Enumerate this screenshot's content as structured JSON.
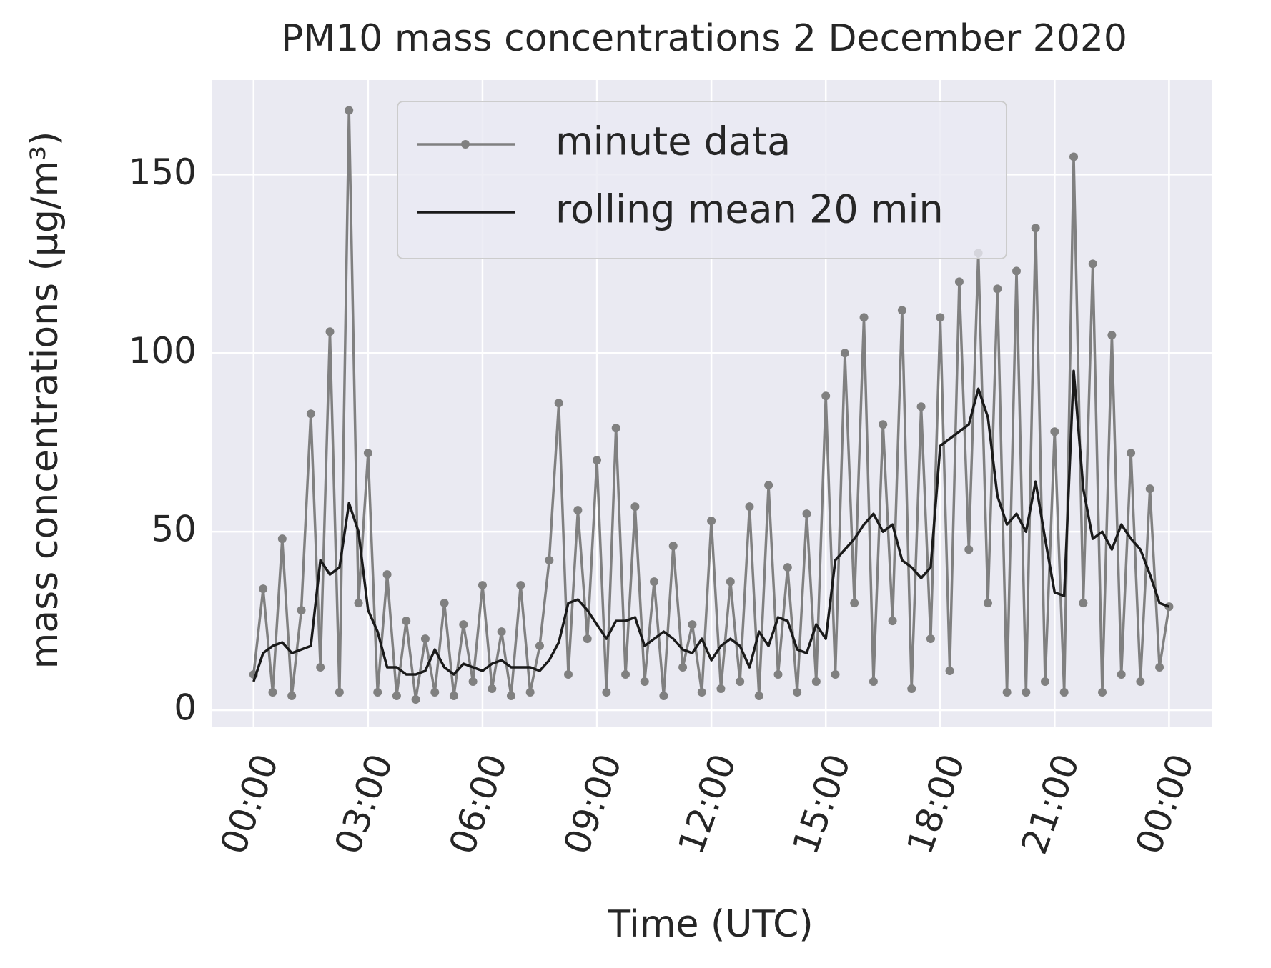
{
  "chart_data": {
    "type": "line",
    "title": "PM10 mass concentrations 2 December 2020",
    "xlabel": "Time (UTC)",
    "ylabel": "mass concentrations (μg/m³)",
    "x": [
      0,
      15,
      30,
      45,
      60,
      75,
      90,
      105,
      120,
      135,
      150,
      165,
      180,
      195,
      210,
      225,
      240,
      255,
      270,
      285,
      300,
      315,
      330,
      345,
      360,
      375,
      390,
      405,
      420,
      435,
      450,
      465,
      480,
      495,
      510,
      525,
      540,
      555,
      570,
      585,
      600,
      615,
      630,
      645,
      660,
      675,
      690,
      705,
      720,
      735,
      750,
      765,
      780,
      795,
      810,
      825,
      840,
      855,
      870,
      885,
      900,
      915,
      930,
      945,
      960,
      975,
      990,
      1005,
      1020,
      1035,
      1050,
      1065,
      1080,
      1095,
      1110,
      1125,
      1140,
      1155,
      1170,
      1185,
      1200,
      1215,
      1230,
      1245,
      1260,
      1275,
      1290,
      1305,
      1320,
      1335,
      1350,
      1365,
      1380,
      1395,
      1410,
      1425,
      1440
    ],
    "series": [
      {
        "name": "minute data",
        "color": "#808080",
        "marker": true,
        "values": [
          10,
          34,
          5,
          48,
          4,
          28,
          83,
          12,
          106,
          5,
          168,
          30,
          72,
          5,
          38,
          4,
          25,
          3,
          20,
          5,
          30,
          4,
          24,
          8,
          35,
          6,
          22,
          4,
          35,
          5,
          18,
          42,
          86,
          10,
          56,
          20,
          70,
          5,
          79,
          10,
          57,
          8,
          36,
          4,
          46,
          12,
          24,
          5,
          53,
          6,
          36,
          8,
          57,
          4,
          63,
          10,
          40,
          5,
          55,
          8,
          88,
          10,
          100,
          30,
          110,
          8,
          80,
          25,
          112,
          6,
          85,
          20,
          110,
          11,
          120,
          45,
          128,
          30,
          118,
          5,
          123,
          5,
          135,
          8,
          78,
          5,
          155,
          30,
          125,
          5,
          105,
          10,
          72,
          8,
          62,
          12,
          29
        ]
      },
      {
        "name": "rolling mean 20 min",
        "color": "#1a1a1a",
        "marker": false,
        "values": [
          8,
          16,
          18,
          19,
          16,
          17,
          18,
          42,
          38,
          40,
          58,
          50,
          28,
          22,
          12,
          12,
          10,
          10,
          11,
          17,
          12,
          10,
          13,
          12,
          11,
          13,
          14,
          12,
          12,
          12,
          11,
          14,
          19,
          30,
          31,
          28,
          24,
          20,
          25,
          25,
          26,
          18,
          20,
          22,
          20,
          17,
          16,
          20,
          14,
          18,
          20,
          18,
          12,
          22,
          18,
          26,
          25,
          17,
          16,
          24,
          20,
          42,
          45,
          48,
          52,
          55,
          50,
          52,
          42,
          40,
          37,
          40,
          74,
          76,
          78,
          80,
          90,
          82,
          60,
          52,
          55,
          50,
          64,
          48,
          33,
          32,
          95,
          62,
          48,
          50,
          45,
          52,
          48,
          45,
          38,
          30,
          29
        ]
      }
    ],
    "xlim": [
      -65,
      1507
    ],
    "xticks": [
      {
        "value": 0,
        "label": "00:00"
      },
      {
        "value": 180,
        "label": "03:00"
      },
      {
        "value": 360,
        "label": "06:00"
      },
      {
        "value": 540,
        "label": "09:00"
      },
      {
        "value": 720,
        "label": "12:00"
      },
      {
        "value": 900,
        "label": "15:00"
      },
      {
        "value": 1080,
        "label": "18:00"
      },
      {
        "value": 1260,
        "label": "21:00"
      },
      {
        "value": 1440,
        "label": "00:00"
      }
    ],
    "ylim": [
      -4.6,
      176.5
    ],
    "yticks": [
      0,
      50,
      100,
      150
    ],
    "grid": true,
    "legend": "upper center"
  }
}
